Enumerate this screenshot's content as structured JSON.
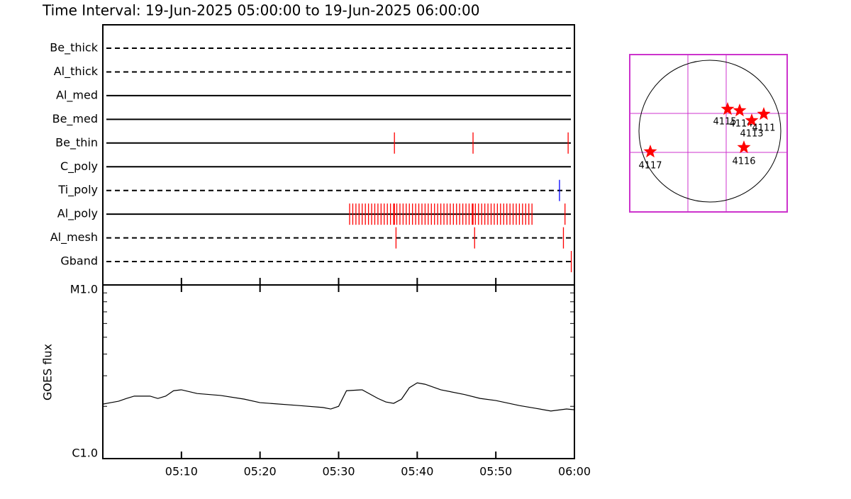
{
  "chart_data": [
    {
      "type": "timeline",
      "title": "Time Interval: 19-Jun-2025 05:00:00 to 19-Jun-2025 06:00:00",
      "xlim": [
        "05:00:00",
        "06:00:00"
      ],
      "filters": [
        {
          "name": "Be_thick",
          "style": "dashed",
          "events": []
        },
        {
          "name": "Al_thick",
          "style": "dashed",
          "events": []
        },
        {
          "name": "Al_med",
          "style": "solid",
          "events": []
        },
        {
          "name": "Be_med",
          "style": "solid",
          "events": []
        },
        {
          "name": "Be_thin",
          "style": "solid",
          "color": "#ff0000",
          "events": [
            "05:37:06",
            "05:47:06",
            "05:59:12"
          ]
        },
        {
          "name": "C_poly",
          "style": "solid",
          "events": []
        },
        {
          "name": "Ti_poly",
          "style": "dashed",
          "color": "#0000ff",
          "events": [
            "05:58:06"
          ]
        },
        {
          "name": "Al_poly",
          "style": "solid",
          "color": "#ff0000",
          "events": [
            "05:31:24",
            "05:31:48",
            "05:32:12",
            "05:32:36",
            "05:33:00",
            "05:33:24",
            "05:33:48",
            "05:34:12",
            "05:34:36",
            "05:35:00",
            "05:35:24",
            "05:35:48",
            "05:36:12",
            "05:36:36",
            "05:37:00",
            "05:37:06",
            "05:37:24",
            "05:37:48",
            "05:38:12",
            "05:38:36",
            "05:39:00",
            "05:39:24",
            "05:39:48",
            "05:40:12",
            "05:40:36",
            "05:41:00",
            "05:41:24",
            "05:41:48",
            "05:42:12",
            "05:42:36",
            "05:43:00",
            "05:43:24",
            "05:43:48",
            "05:44:12",
            "05:44:36",
            "05:45:00",
            "05:45:24",
            "05:45:48",
            "05:46:12",
            "05:46:36",
            "05:47:00",
            "05:47:06",
            "05:47:24",
            "05:47:48",
            "05:48:12",
            "05:48:36",
            "05:49:00",
            "05:49:24",
            "05:49:48",
            "05:50:12",
            "05:50:36",
            "05:51:00",
            "05:51:24",
            "05:51:48",
            "05:52:12",
            "05:52:36",
            "05:53:00",
            "05:53:24",
            "05:53:48",
            "05:54:12",
            "05:54:36",
            "05:58:48"
          ]
        },
        {
          "name": "Al_mesh",
          "style": "dashed",
          "color": "#ff0000",
          "events": [
            "05:37:18",
            "05:47:18",
            "05:58:36"
          ]
        },
        {
          "name": "Gband",
          "style": "dashed",
          "color": "#ff0000",
          "events": [
            "05:59:36"
          ]
        }
      ]
    },
    {
      "type": "line",
      "ylabel": "GOES flux",
      "log": true,
      "color": "#000000",
      "xlim": [
        "05:00:00",
        "06:00:00"
      ],
      "xticks": [
        "05:10",
        "05:20",
        "05:30",
        "05:40",
        "05:50",
        "06:00"
      ],
      "ylim": [
        1e-06,
        1e-05
      ],
      "yticks": [
        {
          "value": 1e-06,
          "label": "C1.0"
        },
        {
          "value": 1e-05,
          "label": "M1.0"
        }
      ],
      "yminor": [
        2e-06,
        3e-06,
        4e-06,
        5e-06,
        6e-06,
        7e-06,
        8e-06,
        9e-06
      ],
      "x": [
        "05:00",
        "05:01",
        "05:02",
        "05:03",
        "05:04",
        "05:06",
        "05:07",
        "05:08",
        "05:09",
        "05:10",
        "05:12",
        "05:15",
        "05:18",
        "05:20",
        "05:25",
        "05:28",
        "05:29",
        "05:30",
        "05:31",
        "05:33",
        "05:35",
        "05:36",
        "05:37",
        "05:38",
        "05:39",
        "05:40",
        "05:41",
        "05:43",
        "05:46",
        "05:48",
        "05:50",
        "05:53",
        "05:55",
        "05:57",
        "05:59",
        "06:00"
      ],
      "values": [
        2.06e-06,
        2.1e-06,
        2.14e-06,
        2.22e-06,
        2.29e-06,
        2.29e-06,
        2.22e-06,
        2.29e-06,
        2.46e-06,
        2.49e-06,
        2.37e-06,
        2.31e-06,
        2.2e-06,
        2.1e-06,
        2.02e-06,
        1.97e-06,
        1.93e-06,
        2e-06,
        2.46e-06,
        2.49e-06,
        2.22e-06,
        2.12e-06,
        2.08e-06,
        2.2e-06,
        2.56e-06,
        2.73e-06,
        2.68e-06,
        2.49e-06,
        2.34e-06,
        2.22e-06,
        2.16e-06,
        2.02e-06,
        1.95e-06,
        1.88e-06,
        1.93e-06,
        1.91e-06
      ]
    }
  ],
  "map": {
    "regions": [
      "4115",
      "4114",
      "4113",
      "4111",
      "4116",
      "4117"
    ]
  }
}
